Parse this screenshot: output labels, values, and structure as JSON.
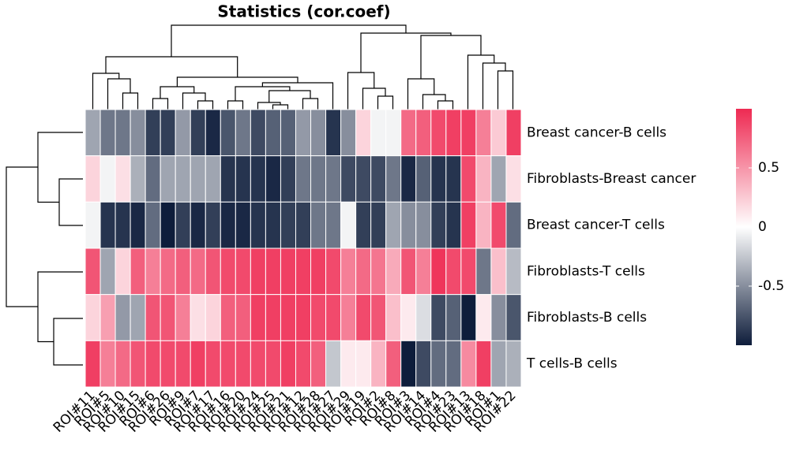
{
  "chart_data": {
    "type": "heatmap",
    "title": "Statistics (cor.coef)",
    "rows": [
      "Breast cancer-B cells",
      "Fibroblasts-Breast cancer",
      "Breast cancer-T cells",
      "Fibroblasts-T cells",
      "Fibroblasts-B cells",
      "T cells-B cells"
    ],
    "columns": [
      "ROI#11",
      "ROI#5",
      "ROI#10",
      "ROI#15",
      "ROI#6",
      "ROI#26",
      "ROI#9",
      "ROI#7",
      "ROI#17",
      "ROI#16",
      "ROI#20",
      "ROI#24",
      "ROI#25",
      "ROI#21",
      "ROI#12",
      "ROI#28",
      "ROI#27",
      "ROI#29",
      "ROI#19",
      "ROI#2",
      "ROI#8",
      "ROI#3",
      "ROI#14",
      "ROI#4",
      "ROI#23",
      "ROI#13",
      "ROI#18",
      "ROI#1",
      "ROI#22"
    ],
    "values": [
      [
        -0.4,
        -0.6,
        -0.6,
        -0.5,
        -0.85,
        -0.85,
        -0.45,
        -0.85,
        -0.95,
        -0.75,
        -0.6,
        -0.8,
        -0.7,
        -0.7,
        -0.45,
        -0.5,
        -0.9,
        -0.5,
        0.2,
        -0.05,
        -0.05,
        0.7,
        0.75,
        0.85,
        0.9,
        0.9,
        0.6,
        0.25,
        0.9
      ],
      [
        0.2,
        -0.05,
        0.15,
        -0.35,
        -0.65,
        -0.4,
        -0.4,
        -0.4,
        -0.4,
        -0.9,
        -0.9,
        -0.9,
        -0.95,
        -0.85,
        -0.6,
        -0.6,
        -0.6,
        -0.8,
        -0.8,
        -0.8,
        -0.6,
        -0.95,
        -0.7,
        -0.9,
        -0.9,
        0.85,
        0.35,
        -0.4,
        0.15
      ],
      [
        -0.05,
        -0.9,
        -0.9,
        -0.95,
        -0.65,
        -1.0,
        -0.85,
        -0.95,
        -0.85,
        -0.95,
        -0.95,
        -0.9,
        -0.9,
        -0.85,
        -0.85,
        -0.6,
        -0.6,
        -0.05,
        -0.85,
        -0.85,
        -0.4,
        -0.5,
        -0.5,
        -0.85,
        -0.9,
        0.9,
        0.35,
        0.85,
        -0.65
      ],
      [
        0.8,
        -0.4,
        0.2,
        0.75,
        0.6,
        0.7,
        0.75,
        0.7,
        0.8,
        0.85,
        0.85,
        0.9,
        0.9,
        0.9,
        0.9,
        0.9,
        0.85,
        0.6,
        0.7,
        0.65,
        0.4,
        0.8,
        0.6,
        0.95,
        0.85,
        0.85,
        -0.6,
        0.3,
        -0.3
      ],
      [
        0.2,
        0.45,
        -0.45,
        -0.4,
        0.8,
        0.8,
        0.6,
        0.15,
        0.2,
        0.75,
        0.75,
        0.9,
        0.9,
        0.9,
        0.9,
        0.85,
        0.85,
        0.6,
        0.85,
        0.8,
        0.3,
        0.1,
        -0.15,
        -0.8,
        -0.7,
        -1.0,
        0.1,
        -0.5,
        -0.75
      ],
      [
        0.9,
        0.6,
        0.7,
        0.8,
        0.85,
        0.85,
        0.85,
        0.9,
        0.85,
        0.85,
        0.85,
        0.85,
        0.85,
        0.9,
        0.85,
        0.75,
        -0.25,
        0.1,
        0.1,
        0.35,
        0.75,
        -1.0,
        -0.8,
        -0.65,
        -0.65,
        0.55,
        0.9,
        -0.4,
        -0.35
      ]
    ],
    "clim": [
      -1,
      1
    ],
    "colors": [
      "#0e1d3b",
      "#ffffff",
      "#ee2a52"
    ],
    "cticks": [
      0.5,
      0,
      -0.5
    ]
  }
}
